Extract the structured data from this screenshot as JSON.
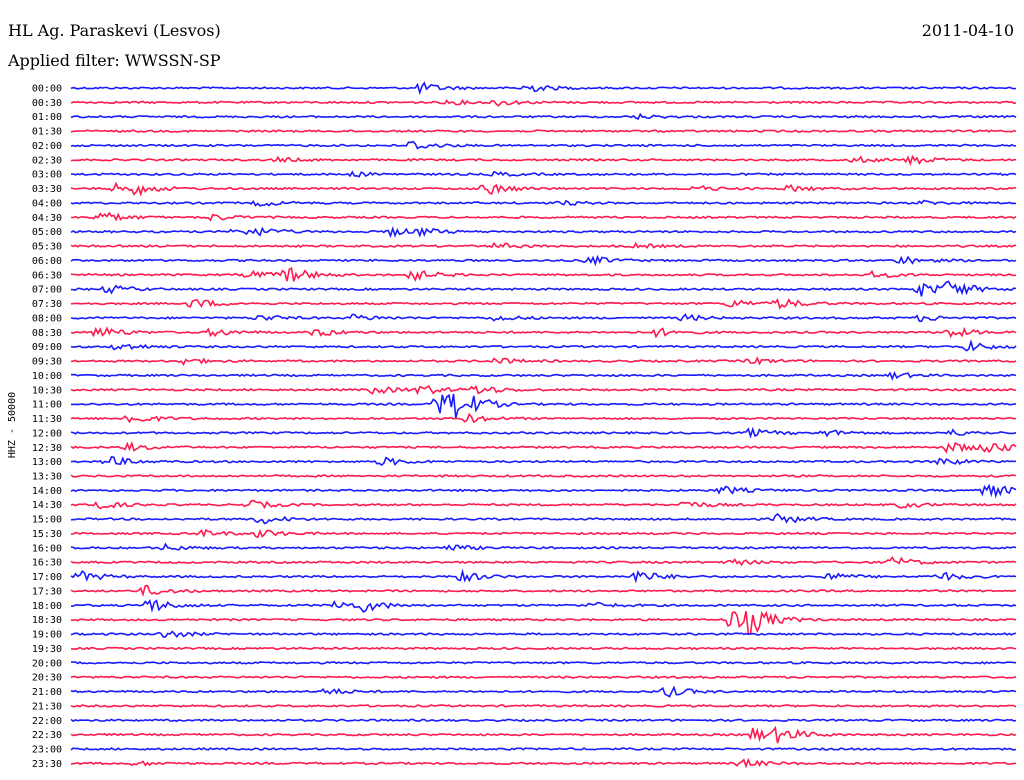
{
  "header": {
    "station": "HL Ag. Paraskevi (Lesvos)",
    "date": "2011-04-10",
    "filter": "Applied filter: WWSSN-SP"
  },
  "chart_data": {
    "type": "line",
    "title": "HL Ag. Paraskevi (Lesvos)",
    "subtitle": "Applied filter: WWSSN-SP",
    "ylabel": "HHZ - 50000",
    "xlabel": "",
    "colors": [
      "#1a1aff",
      "#ff1a4d"
    ],
    "color_order": "alternating blue / red per trace row",
    "grid": false,
    "legend": "none",
    "rows": [
      {
        "label": "00:00",
        "events": [
          [
            0.37,
            5
          ],
          [
            0.48,
            5
          ]
        ]
      },
      {
        "label": "00:30",
        "events": [
          [
            0.4,
            2
          ],
          [
            0.45,
            3
          ]
        ]
      },
      {
        "label": "01:00",
        "events": [
          [
            0.6,
            2
          ]
        ]
      },
      {
        "label": "01:30",
        "events": []
      },
      {
        "label": "02:00",
        "events": [
          [
            0.36,
            5
          ]
        ]
      },
      {
        "label": "02:30",
        "events": [
          [
            0.22,
            2
          ],
          [
            0.83,
            3
          ],
          [
            0.89,
            4
          ]
        ]
      },
      {
        "label": "03:00",
        "events": [
          [
            0.3,
            2
          ],
          [
            0.45,
            2
          ]
        ]
      },
      {
        "label": "03:30",
        "events": [
          [
            0.05,
            5
          ],
          [
            0.07,
            4
          ],
          [
            0.44,
            6
          ],
          [
            0.66,
            3
          ],
          [
            0.76,
            3
          ]
        ]
      },
      {
        "label": "04:00",
        "events": [
          [
            0.2,
            3
          ],
          [
            0.52,
            2
          ],
          [
            0.9,
            2
          ]
        ]
      },
      {
        "label": "04:30",
        "events": [
          [
            0.03,
            6
          ],
          [
            0.15,
            3
          ]
        ]
      },
      {
        "label": "05:00",
        "events": [
          [
            0.17,
            4
          ],
          [
            0.2,
            3
          ],
          [
            0.34,
            4
          ],
          [
            0.37,
            3
          ]
        ]
      },
      {
        "label": "05:30",
        "events": [
          [
            0.45,
            3
          ],
          [
            0.6,
            2
          ]
        ]
      },
      {
        "label": "06:00",
        "events": [
          [
            0.55,
            4
          ],
          [
            0.88,
            4
          ]
        ]
      },
      {
        "label": "06:30",
        "events": [
          [
            0.19,
            4
          ],
          [
            0.23,
            8
          ],
          [
            0.36,
            6
          ],
          [
            0.85,
            3
          ]
        ]
      },
      {
        "label": "07:00",
        "events": [
          [
            0.04,
            4
          ],
          [
            0.9,
            7
          ],
          [
            0.93,
            8
          ]
        ]
      },
      {
        "label": "07:30",
        "events": [
          [
            0.13,
            5
          ],
          [
            0.7,
            4
          ],
          [
            0.75,
            5
          ]
        ]
      },
      {
        "label": "08:00",
        "events": [
          [
            0.2,
            3
          ],
          [
            0.3,
            3
          ],
          [
            0.45,
            3
          ],
          [
            0.65,
            3
          ],
          [
            0.9,
            3
          ]
        ]
      },
      {
        "label": "08:30",
        "events": [
          [
            0.03,
            6
          ],
          [
            0.15,
            4
          ],
          [
            0.26,
            4
          ],
          [
            0.62,
            4
          ],
          [
            0.93,
            5
          ]
        ]
      },
      {
        "label": "09:00",
        "events": [
          [
            0.05,
            4
          ],
          [
            0.95,
            5
          ]
        ]
      },
      {
        "label": "09:30",
        "events": [
          [
            0.12,
            3
          ],
          [
            0.45,
            3
          ],
          [
            0.72,
            3
          ]
        ]
      },
      {
        "label": "10:00",
        "events": [
          [
            0.87,
            3
          ]
        ]
      },
      {
        "label": "10:30",
        "events": [
          [
            0.32,
            4
          ],
          [
            0.37,
            5
          ],
          [
            0.43,
            5
          ]
        ]
      },
      {
        "label": "11:00",
        "events": [
          [
            0.39,
            14
          ],
          [
            0.41,
            12
          ]
        ]
      },
      {
        "label": "11:30",
        "events": [
          [
            0.06,
            6
          ],
          [
            0.42,
            4
          ]
        ]
      },
      {
        "label": "12:00",
        "events": [
          [
            0.72,
            4
          ],
          [
            0.8,
            3
          ],
          [
            0.93,
            3
          ]
        ]
      },
      {
        "label": "12:30",
        "events": [
          [
            0.06,
            4
          ],
          [
            0.93,
            6
          ],
          [
            0.97,
            6
          ]
        ]
      },
      {
        "label": "13:00",
        "events": [
          [
            0.04,
            5
          ],
          [
            0.33,
            4
          ],
          [
            0.92,
            4
          ]
        ]
      },
      {
        "label": "13:30",
        "events": []
      },
      {
        "label": "14:00",
        "events": [
          [
            0.69,
            4
          ],
          [
            0.97,
            7
          ]
        ]
      },
      {
        "label": "14:30",
        "events": [
          [
            0.02,
            6
          ],
          [
            0.19,
            4
          ],
          [
            0.65,
            4
          ],
          [
            0.88,
            3
          ]
        ]
      },
      {
        "label": "15:00",
        "events": [
          [
            0.2,
            5
          ],
          [
            0.75,
            5
          ]
        ]
      },
      {
        "label": "15:30",
        "events": [
          [
            0.14,
            3
          ],
          [
            0.2,
            4
          ]
        ]
      },
      {
        "label": "16:00",
        "events": [
          [
            0.1,
            3
          ],
          [
            0.4,
            3
          ]
        ]
      },
      {
        "label": "16:30",
        "events": [
          [
            0.7,
            3
          ],
          [
            0.87,
            5
          ]
        ]
      },
      {
        "label": "17:00",
        "events": [
          [
            0.01,
            5
          ],
          [
            0.41,
            6
          ],
          [
            0.6,
            6
          ],
          [
            0.8,
            4
          ],
          [
            0.92,
            4
          ]
        ]
      },
      {
        "label": "17:30",
        "events": [
          [
            0.08,
            5
          ]
        ]
      },
      {
        "label": "18:00",
        "events": [
          [
            0.08,
            8
          ],
          [
            0.28,
            5
          ],
          [
            0.31,
            5
          ],
          [
            0.55,
            3
          ]
        ]
      },
      {
        "label": "18:30",
        "events": [
          [
            0.7,
            12
          ],
          [
            0.72,
            10
          ]
        ]
      },
      {
        "label": "19:00",
        "events": [
          [
            0.1,
            4
          ]
        ]
      },
      {
        "label": "19:30",
        "events": []
      },
      {
        "label": "20:00",
        "events": []
      },
      {
        "label": "20:30",
        "events": []
      },
      {
        "label": "21:00",
        "events": [
          [
            0.27,
            3
          ],
          [
            0.63,
            5
          ]
        ]
      },
      {
        "label": "21:30",
        "events": []
      },
      {
        "label": "22:00",
        "events": []
      },
      {
        "label": "22:30",
        "events": [
          [
            0.72,
            7
          ],
          [
            0.75,
            7
          ]
        ]
      },
      {
        "label": "23:00",
        "events": []
      },
      {
        "label": "23:30",
        "events": [
          [
            0.07,
            2
          ],
          [
            0.71,
            4
          ]
        ]
      }
    ]
  }
}
